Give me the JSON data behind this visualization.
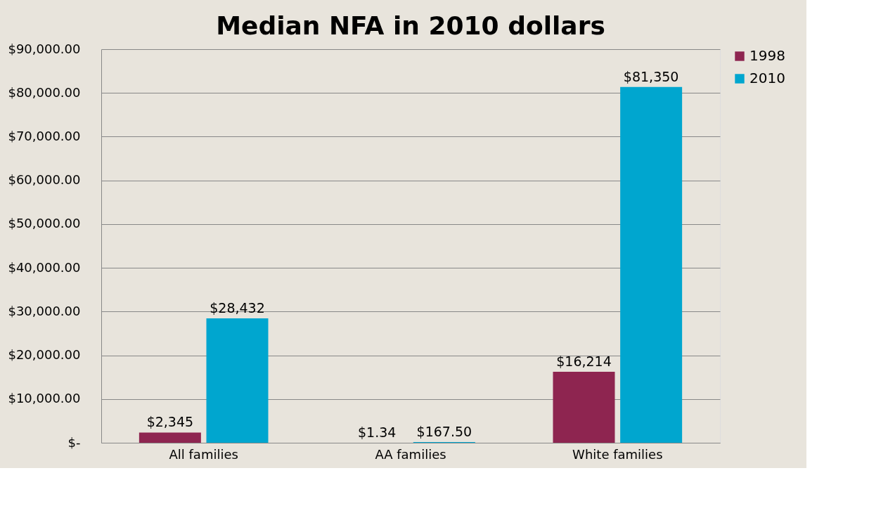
{
  "chart_data": {
    "type": "bar",
    "title": "Median NFA in 2010 dollars",
    "categories": [
      "All families",
      "AA families",
      "White families"
    ],
    "series": [
      {
        "name": "1998",
        "color": "#8e2550",
        "values": [
          2345,
          1.34,
          16214
        ],
        "value_labels": [
          "$2,345",
          "$1.34",
          "$16,214"
        ]
      },
      {
        "name": "2010",
        "color": "#00a6cf",
        "values": [
          28432,
          167.5,
          81350
        ],
        "value_labels": [
          "$28,432",
          "$167.50",
          "$81,350"
        ]
      }
    ],
    "ylim": [
      0,
      90000
    ],
    "yticks": [
      {
        "value": 0,
        "label": "$-"
      },
      {
        "value": 10000,
        "label": "$10,000.00"
      },
      {
        "value": 20000,
        "label": "$20,000.00"
      },
      {
        "value": 30000,
        "label": "$30,000.00"
      },
      {
        "value": 40000,
        "label": "$40,000.00"
      },
      {
        "value": 50000,
        "label": "$50,000.00"
      },
      {
        "value": 60000,
        "label": "$60,000.00"
      },
      {
        "value": 70000,
        "label": "$70,000.00"
      },
      {
        "value": 80000,
        "label": "$80,000.00"
      },
      {
        "value": 90000,
        "label": "$90,000.00"
      }
    ],
    "grid": "y",
    "legend": "right"
  }
}
